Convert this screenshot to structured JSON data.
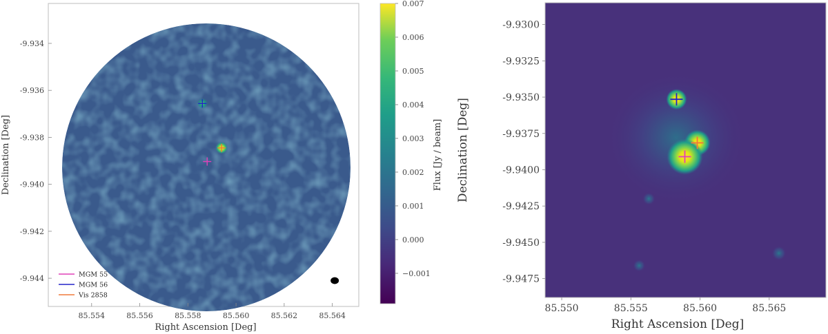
{
  "chart_data": [
    {
      "type": "heatmap",
      "panel": "left",
      "xlabel": "Right Ascension [Deg]",
      "ylabel": "Declination [Deg]",
      "xlim": [
        85.5522,
        85.5651
      ],
      "ylim": [
        -9.9452,
        -9.9323
      ],
      "xticks": [
        85.554,
        85.556,
        85.558,
        85.56,
        85.562,
        85.564
      ],
      "xtick_labels": [
        "85.554",
        "85.556",
        "85.558",
        "85.560",
        "85.562",
        "85.564"
      ],
      "yticks": [
        -9.934,
        -9.936,
        -9.938,
        -9.94,
        -9.942,
        -9.944
      ],
      "ytick_labels": [
        "-9.934",
        "-9.936",
        "-9.938",
        "-9.940",
        "-9.942",
        "-9.944"
      ],
      "field_center": [
        85.5586,
        -9.9388
      ],
      "field_radius": 0.00625,
      "colorbar": {
        "label": "Flux [Jy / beam]",
        "vmin": -0.0019,
        "vmax": 0.007,
        "ticks": [
          -0.001,
          0.0,
          0.001,
          0.002,
          0.003,
          0.004,
          0.005,
          0.006,
          0.007
        ],
        "tick_labels": [
          "−0.001",
          "0.000",
          "0.001",
          "0.002",
          "0.003",
          "0.004",
          "0.005",
          "0.006",
          "0.007"
        ]
      },
      "sources": [
        {
          "x": 85.5594,
          "y": -9.93845,
          "flux": 0.007
        },
        {
          "x": 85.5586,
          "y": -9.93656,
          "flux": 0.0035
        }
      ],
      "markers": [
        {
          "name": "MGM 55",
          "color": "#e040b8",
          "x": 85.5588,
          "y": -9.93903
        },
        {
          "name": "MGM 56",
          "color": "#2323c8",
          "x": 85.5586,
          "y": -9.93656
        },
        {
          "name": "Vis 2858",
          "color": "#f07a3a",
          "x": 85.5594,
          "y": -9.93845
        }
      ],
      "beam": {
        "x": 85.5641,
        "y": -9.9441
      },
      "legend": "lower-left",
      "grid": false
    },
    {
      "type": "heatmap",
      "panel": "right",
      "xlabel": "Right Ascension [Deg]",
      "ylabel": "Declination [Deg]",
      "xlim": [
        85.5488,
        85.5691
      ],
      "ylim": [
        -9.9488,
        -9.9285
      ],
      "xticks": [
        85.55,
        85.555,
        85.56,
        85.565
      ],
      "xtick_labels": [
        "85.550",
        "85.555",
        "85.560",
        "85.565"
      ],
      "yticks": [
        -9.93,
        -9.9325,
        -9.935,
        -9.9375,
        -9.94,
        -9.9425,
        -9.945,
        -9.9475
      ],
      "ytick_labels": [
        "-9.9300",
        "-9.9325",
        "-9.9350",
        "-9.9375",
        "-9.9400",
        "-9.9425",
        "-9.9450",
        "-9.9475"
      ],
      "sources": [
        {
          "x": 85.5583,
          "y": -9.93515,
          "strength": 0.75
        },
        {
          "x": 85.5598,
          "y": -9.93815,
          "strength": 0.9
        },
        {
          "x": 85.5589,
          "y": -9.9391,
          "strength": 1.0
        },
        {
          "x": 85.5657,
          "y": -9.94575,
          "strength": 0.15
        },
        {
          "x": 85.5563,
          "y": -9.942,
          "strength": 0.08
        },
        {
          "x": 85.5556,
          "y": -9.9466,
          "strength": 0.07
        }
      ],
      "markers": [
        {
          "name": "MGM 55",
          "color": "#e040b8",
          "x": 85.5589,
          "y": -9.9391
        },
        {
          "name": "MGM 56",
          "color": "#2323c8",
          "x": 85.5583,
          "y": -9.93515
        },
        {
          "name": "Vis 2858",
          "color": "#f07a3a",
          "x": 85.5598,
          "y": -9.93815
        }
      ],
      "grid": false
    }
  ]
}
